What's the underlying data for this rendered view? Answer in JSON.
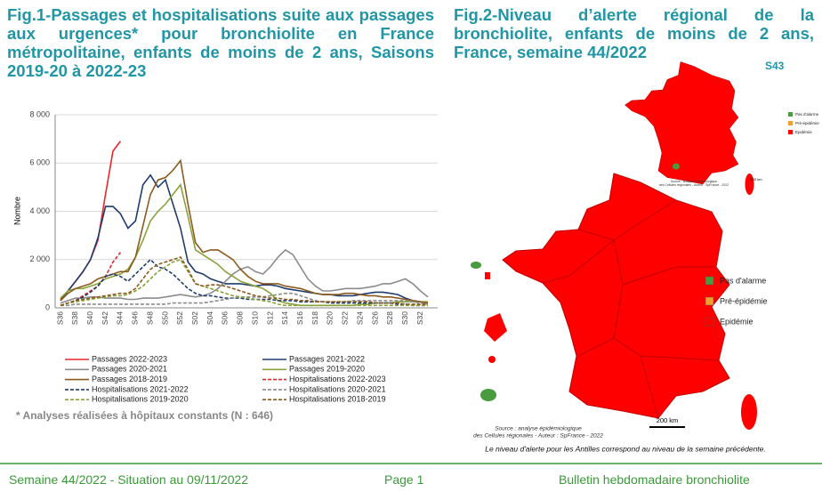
{
  "fig1": {
    "title": "Fig.1-Passages et hospitalisations suite aux passages aux urgences* pour bronchiolite en France métropolitaine, enfants de moins de 2 ans, Saisons 2019-20 à 2022-23",
    "note": "* Analyses réalisées à hôpitaux constants (N : 646)"
  },
  "chart_data": {
    "type": "line",
    "ylabel": "Nombre",
    "categories": [
      "S36",
      null,
      "S38",
      null,
      "S40",
      null,
      "S42",
      null,
      "S44",
      null,
      "S46",
      null,
      "S48",
      null,
      "S50",
      null,
      "S52",
      null,
      "S02",
      null,
      "S04",
      null,
      "S06",
      null,
      "S08",
      null,
      "S10",
      null,
      "S12",
      null,
      "S14",
      null,
      "S16",
      null,
      "S18",
      null,
      "S20",
      null,
      "S22",
      null,
      "S24",
      null,
      "S26",
      null,
      "S28",
      null,
      "S30",
      null,
      "S32",
      null
    ],
    "ylim": [
      0,
      8000
    ],
    "yticks": [
      0,
      {
        "value": 2000,
        "label": "2 000"
      },
      {
        "value": 4000,
        "label": "4 000"
      },
      {
        "value": 6000,
        "label": "6 000"
      },
      {
        "value": 8000,
        "label": "8 000"
      }
    ],
    "grid": true,
    "series": [
      {
        "name": "Passages 2022-2023",
        "color": "#e8262b",
        "dashed": false,
        "values": [
          350,
          700,
          1100,
          1500,
          2000,
          2800,
          4700,
          6500,
          6900,
          null,
          null,
          null,
          null,
          null,
          null,
          null,
          null,
          null,
          null,
          null,
          null,
          null,
          null,
          null,
          null,
          null,
          null,
          null,
          null,
          null,
          null,
          null,
          null,
          null,
          null,
          null,
          null,
          null,
          null,
          null,
          null,
          null,
          null,
          null,
          null,
          null,
          null,
          null,
          null,
          null
        ]
      },
      {
        "name": "Passages 2021-2022",
        "color": "#1f3c6e",
        "dashed": false,
        "values": [
          300,
          700,
          1100,
          1500,
          2000,
          2900,
          4200,
          4200,
          3900,
          3300,
          3600,
          5100,
          5500,
          5000,
          5300,
          4300,
          3300,
          1900,
          1500,
          1400,
          1200,
          1100,
          1000,
          1000,
          1000,
          950,
          900,
          950,
          950,
          900,
          800,
          750,
          700,
          650,
          600,
          550,
          550,
          500,
          500,
          500,
          550,
          600,
          650,
          650,
          600,
          550,
          400,
          300,
          250,
          200
        ]
      },
      {
        "name": "Passages 2020-2021",
        "color": "#8c8c8c",
        "dashed": false,
        "values": [
          200,
          300,
          400,
          400,
          450,
          450,
          400,
          400,
          400,
          350,
          350,
          400,
          400,
          400,
          450,
          500,
          550,
          500,
          450,
          500,
          600,
          800,
          1100,
          1400,
          1600,
          1700,
          1500,
          1400,
          1700,
          2100,
          2400,
          2200,
          1700,
          1200,
          900,
          700,
          700,
          750,
          800,
          800,
          800,
          850,
          900,
          1000,
          1000,
          1100,
          1200,
          1000,
          700,
          450
        ]
      },
      {
        "name": "Passages 2019-2020",
        "color": "#8aa23a",
        "dashed": false,
        "values": [
          400,
          700,
          800,
          800,
          900,
          1000,
          1200,
          1300,
          1400,
          1600,
          2100,
          2800,
          3600,
          4000,
          4300,
          4700,
          5100,
          3800,
          2400,
          2200,
          2000,
          1800,
          1500,
          1300,
          1100,
          1000,
          900,
          800,
          600,
          300,
          200,
          150,
          100,
          100,
          100,
          100,
          100,
          100,
          100,
          100,
          150,
          150,
          200,
          200,
          200,
          250,
          250,
          250,
          250,
          250
        ]
      },
      {
        "name": "Passages 2018-2019",
        "color": "#8b5a1e",
        "dashed": false,
        "values": [
          300,
          600,
          800,
          900,
          1000,
          1200,
          1300,
          1400,
          1500,
          1500,
          2100,
          3400,
          4700,
          5300,
          5400,
          5700,
          6100,
          4300,
          2700,
          2300,
          2400,
          2400,
          2200,
          2000,
          1600,
          1300,
          1100,
          1000,
          1000,
          1000,
          900,
          850,
          800,
          700,
          600,
          550,
          550,
          550,
          600,
          600,
          550,
          500,
          500,
          450,
          450,
          400,
          350,
          300,
          250,
          200
        ]
      },
      {
        "name": "Hospitalisations 2022-2023",
        "color": "#e8262b",
        "dashed": true,
        "values": [
          100,
          200,
          300,
          500,
          700,
          900,
          1300,
          1900,
          2300,
          null,
          null,
          null,
          null,
          null,
          null,
          null,
          null,
          null,
          null,
          null,
          null,
          null,
          null,
          null,
          null,
          null,
          null,
          null,
          null,
          null,
          null,
          null,
          null,
          null,
          null,
          null,
          null,
          null,
          null,
          null,
          null,
          null,
          null,
          null,
          null,
          null,
          null,
          null,
          null,
          null
        ]
      },
      {
        "name": "Hospitalisations 2021-2022",
        "color": "#1f3c6e",
        "dashed": true,
        "values": [
          100,
          200,
          300,
          450,
          650,
          900,
          1300,
          1400,
          1300,
          1100,
          1400,
          1700,
          2000,
          1700,
          1600,
          1400,
          1100,
          800,
          600,
          500,
          500,
          450,
          400,
          400,
          400,
          350,
          350,
          350,
          350,
          300,
          300,
          300,
          250,
          250,
          250,
          250,
          200,
          200,
          200,
          200,
          200,
          200,
          200,
          200,
          200,
          150,
          150,
          100,
          100,
          100
        ]
      },
      {
        "name": "Hospitalisations 2020-2021",
        "color": "#8c8c8c",
        "dashed": true,
        "values": [
          100,
          100,
          150,
          150,
          150,
          150,
          150,
          150,
          150,
          150,
          150,
          150,
          150,
          150,
          150,
          200,
          200,
          200,
          200,
          200,
          250,
          300,
          350,
          400,
          450,
          450,
          450,
          450,
          500,
          550,
          600,
          600,
          500,
          400,
          300,
          250,
          250,
          250,
          250,
          300,
          300,
          300,
          300,
          300,
          300,
          300,
          300,
          250,
          200,
          150
        ]
      },
      {
        "name": "Hospitalisations 2019-2020",
        "color": "#8aa23a",
        "dashed": true,
        "values": [
          100,
          200,
          250,
          300,
          350,
          400,
          450,
          500,
          500,
          550,
          700,
          900,
          1200,
          1500,
          1700,
          1900,
          2000,
          1500,
          1000,
          900,
          800,
          700,
          600,
          500,
          450,
          400,
          350,
          300,
          250,
          150,
          100,
          100,
          100,
          100,
          100,
          100,
          100,
          100,
          100,
          100,
          100,
          100,
          100,
          100,
          100,
          100,
          100,
          100,
          100,
          100
        ]
      },
      {
        "name": "Hospitalisations 2018-2019",
        "color": "#8b5a1e",
        "dashed": true,
        "values": [
          100,
          200,
          300,
          350,
          400,
          450,
          500,
          550,
          600,
          600,
          800,
          1200,
          1600,
          1800,
          1900,
          2000,
          2100,
          1600,
          1000,
          900,
          950,
          950,
          900,
          800,
          700,
          600,
          500,
          450,
          400,
          400,
          350,
          350,
          300,
          300,
          250,
          250,
          250,
          250,
          250,
          250,
          250,
          250,
          200,
          200,
          200,
          200,
          150,
          150,
          150,
          150
        ]
      }
    ]
  },
  "fig2": {
    "title": "Fig.2-Niveau d’alerte régional de la bronchiolite, enfants de moins de 2 ans, France, semaine 44/2022",
    "inset_label": "S43",
    "legend": [
      {
        "label": "Pas d'alarme",
        "color": "#4a9a3f"
      },
      {
        "label": "Pré-épidémie",
        "color": "#f0a030"
      },
      {
        "label": "Epidémie",
        "color": "#ff0000"
      }
    ],
    "source": [
      "Source : analyse épidémiologique",
      "des Cellules régionales - Auteur : SpFrance - 2022"
    ],
    "scale": "200 km",
    "caption": "Le niveau d'alerte pour les Antilles correspond au niveau de la semaine précédente."
  },
  "footer": {
    "left": "Semaine 44/2022 - Situation au 09/11/2022",
    "center": "Page 1",
    "right": "Bulletin hebdomadaire bronchiolite"
  }
}
